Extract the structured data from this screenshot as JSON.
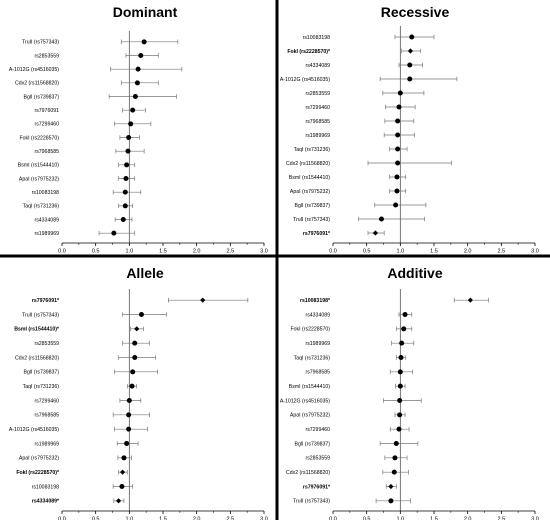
{
  "chart_data": [
    {
      "panel": "Dominant",
      "type": "forest",
      "title": "Dominant",
      "xlim": [
        0,
        3.0
      ],
      "xticks": [
        "0.0",
        "0.5",
        "1.0",
        "1.5",
        "2.0",
        "2.5",
        "3.0"
      ],
      "reference_line": 1.0,
      "rows": [
        {
          "label": "TruII (rs757343)",
          "estimate": 1.22,
          "lower": 0.88,
          "upper": 1.72,
          "bold": false,
          "marker": "circle"
        },
        {
          "label": "rs2853559",
          "estimate": 1.17,
          "lower": 0.95,
          "upper": 1.43,
          "bold": false,
          "marker": "circle"
        },
        {
          "label": "A-1012G (rs4516035)",
          "estimate": 1.13,
          "lower": 0.72,
          "upper": 1.78,
          "bold": false,
          "marker": "circle"
        },
        {
          "label": "Cdx2 (rs11568820)",
          "estimate": 1.12,
          "lower": 0.88,
          "upper": 1.43,
          "bold": false,
          "marker": "circle"
        },
        {
          "label": "BglI (rs739837)",
          "estimate": 1.09,
          "lower": 0.7,
          "upper": 1.7,
          "bold": false,
          "marker": "circle"
        },
        {
          "label": "rs7976091",
          "estimate": 1.05,
          "lower": 0.9,
          "upper": 1.24,
          "bold": false,
          "marker": "circle"
        },
        {
          "label": "rs7299460",
          "estimate": 1.02,
          "lower": 0.78,
          "upper": 1.32,
          "bold": false,
          "marker": "circle"
        },
        {
          "label": "FokI (rs2228570)",
          "estimate": 0.99,
          "lower": 0.86,
          "upper": 1.15,
          "bold": false,
          "marker": "circle"
        },
        {
          "label": "rs7968585",
          "estimate": 0.98,
          "lower": 0.8,
          "upper": 1.22,
          "bold": false,
          "marker": "circle"
        },
        {
          "label": "BsmI (rs1544410)",
          "estimate": 0.96,
          "lower": 0.84,
          "upper": 1.08,
          "bold": false,
          "marker": "circle"
        },
        {
          "label": "ApaI (rs7975232)",
          "estimate": 0.95,
          "lower": 0.84,
          "upper": 1.08,
          "bold": false,
          "marker": "circle"
        },
        {
          "label": "rs10083198",
          "estimate": 0.94,
          "lower": 0.76,
          "upper": 1.17,
          "bold": false,
          "marker": "circle"
        },
        {
          "label": "TaqI (rs731236)",
          "estimate": 0.94,
          "lower": 0.84,
          "upper": 1.05,
          "bold": false,
          "marker": "circle"
        },
        {
          "label": "rs4334089",
          "estimate": 0.91,
          "lower": 0.79,
          "upper": 1.04,
          "bold": false,
          "marker": "circle"
        },
        {
          "label": "rs1989969",
          "estimate": 0.77,
          "lower": 0.55,
          "upper": 1.08,
          "bold": false,
          "marker": "circle"
        }
      ]
    },
    {
      "panel": "Recessive",
      "type": "forest",
      "title": "Recessive",
      "xlim": [
        0,
        3.0
      ],
      "xticks": [
        "0.0",
        "0.5",
        "1.0",
        "1.5",
        "2.0",
        "2.5",
        "3.0"
      ],
      "reference_line": 1.0,
      "rows": [
        {
          "label": "rs10083198",
          "estimate": 1.17,
          "lower": 0.92,
          "upper": 1.5,
          "bold": false,
          "marker": "circle"
        },
        {
          "label": "FokI (rs2228570)*",
          "estimate": 1.15,
          "lower": 1.02,
          "upper": 1.3,
          "bold": true,
          "marker": "diamond"
        },
        {
          "label": "rs4334089",
          "estimate": 1.14,
          "lower": 0.98,
          "upper": 1.33,
          "bold": false,
          "marker": "circle"
        },
        {
          "label": "A-1012G (rs4516035)",
          "estimate": 1.14,
          "lower": 0.7,
          "upper": 1.84,
          "bold": false,
          "marker": "circle"
        },
        {
          "label": "rs2853559",
          "estimate": 1.0,
          "lower": 0.74,
          "upper": 1.35,
          "bold": false,
          "marker": "circle"
        },
        {
          "label": "rs7299460",
          "estimate": 0.98,
          "lower": 0.78,
          "upper": 1.22,
          "bold": false,
          "marker": "circle"
        },
        {
          "label": "rs7968585",
          "estimate": 0.96,
          "lower": 0.77,
          "upper": 1.2,
          "bold": false,
          "marker": "circle"
        },
        {
          "label": "rs1989969",
          "estimate": 0.96,
          "lower": 0.76,
          "upper": 1.21,
          "bold": false,
          "marker": "circle"
        },
        {
          "label": "TaqI (rs731236)",
          "estimate": 0.96,
          "lower": 0.84,
          "upper": 1.1,
          "bold": false,
          "marker": "circle"
        },
        {
          "label": "Cdx2 (rs11568820)",
          "estimate": 0.96,
          "lower": 0.52,
          "upper": 1.76,
          "bold": false,
          "marker": "circle"
        },
        {
          "label": "BsmI (rs1544410)",
          "estimate": 0.95,
          "lower": 0.84,
          "upper": 1.08,
          "bold": false,
          "marker": "circle"
        },
        {
          "label": "ApaI (rs7975232)",
          "estimate": 0.95,
          "lower": 0.84,
          "upper": 1.08,
          "bold": false,
          "marker": "circle"
        },
        {
          "label": "BglI (rs739837)",
          "estimate": 0.93,
          "lower": 0.62,
          "upper": 1.38,
          "bold": false,
          "marker": "circle"
        },
        {
          "label": "TruII (rs757343)",
          "estimate": 0.72,
          "lower": 0.38,
          "upper": 1.36,
          "bold": false,
          "marker": "circle"
        },
        {
          "label": "rs7976091*",
          "estimate": 0.63,
          "lower": 0.52,
          "upper": 0.76,
          "bold": true,
          "marker": "diamond"
        }
      ]
    },
    {
      "panel": "Allele",
      "type": "forest",
      "title": "Allele",
      "xlim": [
        0,
        3.0
      ],
      "xticks": [
        "0.0",
        "0.5",
        "1.0",
        "1.5",
        "2.0",
        "2.5",
        "3.0"
      ],
      "reference_line": 1.0,
      "rows": [
        {
          "label": "rs7976091*",
          "estimate": 2.09,
          "lower": 1.58,
          "upper": 2.76,
          "bold": true,
          "marker": "diamond"
        },
        {
          "label": "TruII (rs757343)",
          "estimate": 1.18,
          "lower": 0.9,
          "upper": 1.55,
          "bold": false,
          "marker": "circle"
        },
        {
          "label": "BsmI (rs1544410)*",
          "estimate": 1.11,
          "lower": 1.02,
          "upper": 1.21,
          "bold": true,
          "marker": "diamond"
        },
        {
          "label": "rs2853559",
          "estimate": 1.08,
          "lower": 0.9,
          "upper": 1.3,
          "bold": false,
          "marker": "circle"
        },
        {
          "label": "Cdx2 (rs11568820)",
          "estimate": 1.08,
          "lower": 0.84,
          "upper": 1.39,
          "bold": false,
          "marker": "circle"
        },
        {
          "label": "BglI (rs739837)",
          "estimate": 1.05,
          "lower": 0.78,
          "upper": 1.42,
          "bold": false,
          "marker": "circle"
        },
        {
          "label": "TaqI (rs731236)",
          "estimate": 1.04,
          "lower": 0.97,
          "upper": 1.11,
          "bold": false,
          "marker": "circle"
        },
        {
          "label": "rs7299460",
          "estimate": 1.0,
          "lower": 0.86,
          "upper": 1.17,
          "bold": false,
          "marker": "circle"
        },
        {
          "label": "rs7968585",
          "estimate": 0.99,
          "lower": 0.76,
          "upper": 1.3,
          "bold": false,
          "marker": "circle"
        },
        {
          "label": "A-1012G (rs4516035)",
          "estimate": 0.99,
          "lower": 0.78,
          "upper": 1.27,
          "bold": false,
          "marker": "circle"
        },
        {
          "label": "rs1989969",
          "estimate": 0.96,
          "lower": 0.82,
          "upper": 1.13,
          "bold": false,
          "marker": "circle"
        },
        {
          "label": "ApaI (rs7975232)",
          "estimate": 0.92,
          "lower": 0.83,
          "upper": 1.03,
          "bold": false,
          "marker": "circle"
        },
        {
          "label": "FokI (rs2228570)*",
          "estimate": 0.9,
          "lower": 0.84,
          "upper": 0.97,
          "bold": true,
          "marker": "diamond"
        },
        {
          "label": "rs10083198",
          "estimate": 0.89,
          "lower": 0.76,
          "upper": 1.05,
          "bold": false,
          "marker": "circle"
        },
        {
          "label": "rs4334089*",
          "estimate": 0.84,
          "lower": 0.77,
          "upper": 0.92,
          "bold": true,
          "marker": "diamond"
        }
      ]
    },
    {
      "panel": "Additive",
      "type": "forest",
      "title": "Additive",
      "xlim": [
        0,
        3.0
      ],
      "xticks": [
        "0.0",
        "0.5",
        "1.0",
        "1.5",
        "2.0",
        "2.5",
        "3.0"
      ],
      "reference_line": 1.0,
      "rows": [
        {
          "label": "rs10083198*",
          "estimate": 2.04,
          "lower": 1.8,
          "upper": 2.31,
          "bold": true,
          "marker": "diamond"
        },
        {
          "label": "rs4334089",
          "estimate": 1.07,
          "lower": 0.98,
          "upper": 1.17,
          "bold": false,
          "marker": "circle"
        },
        {
          "label": "FokI (rs2228570)",
          "estimate": 1.05,
          "lower": 0.94,
          "upper": 1.17,
          "bold": false,
          "marker": "circle"
        },
        {
          "label": "rs1989969",
          "estimate": 1.02,
          "lower": 0.87,
          "upper": 1.2,
          "bold": false,
          "marker": "circle"
        },
        {
          "label": "TaqI (rs731236)",
          "estimate": 1.01,
          "lower": 0.94,
          "upper": 1.08,
          "bold": false,
          "marker": "circle"
        },
        {
          "label": "rs7968585",
          "estimate": 1.0,
          "lower": 0.85,
          "upper": 1.18,
          "bold": false,
          "marker": "circle"
        },
        {
          "label": "BsmI (rs1544410)",
          "estimate": 1.0,
          "lower": 0.93,
          "upper": 1.07,
          "bold": false,
          "marker": "circle"
        },
        {
          "label": "A-1012G (rs4516035)",
          "estimate": 0.99,
          "lower": 0.75,
          "upper": 1.31,
          "bold": false,
          "marker": "circle"
        },
        {
          "label": "ApaI (rs7975232)",
          "estimate": 0.99,
          "lower": 0.92,
          "upper": 1.07,
          "bold": false,
          "marker": "circle"
        },
        {
          "label": "rs7299460",
          "estimate": 0.98,
          "lower": 0.85,
          "upper": 1.13,
          "bold": false,
          "marker": "circle"
        },
        {
          "label": "BglI (rs739837)",
          "estimate": 0.94,
          "lower": 0.7,
          "upper": 1.26,
          "bold": false,
          "marker": "circle"
        },
        {
          "label": "rs2853559",
          "estimate": 0.92,
          "lower": 0.77,
          "upper": 1.1,
          "bold": false,
          "marker": "circle"
        },
        {
          "label": "Cdx2 (rs11568820)",
          "estimate": 0.91,
          "lower": 0.74,
          "upper": 1.12,
          "bold": false,
          "marker": "circle"
        },
        {
          "label": "rs7976091*",
          "estimate": 0.86,
          "lower": 0.79,
          "upper": 0.94,
          "bold": true,
          "marker": "diamond"
        },
        {
          "label": "TruII (rs757343)",
          "estimate": 0.86,
          "lower": 0.64,
          "upper": 1.15,
          "bold": false,
          "marker": "circle"
        }
      ]
    }
  ]
}
